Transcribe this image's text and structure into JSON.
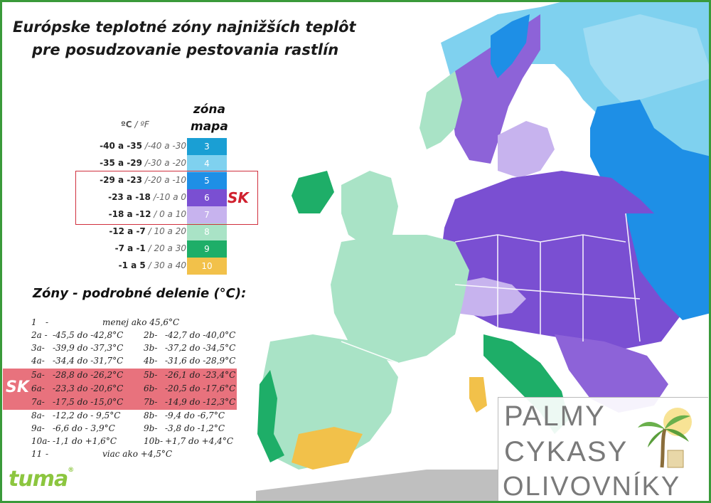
{
  "title": {
    "line1": "Európske teplotné zóny najnižších teplôt",
    "line2": "pre posudzovanie  pestovania rastlín"
  },
  "legend": {
    "units_c": "ºC",
    "units_f": " / ºF",
    "zone_header_1": "zóna",
    "zone_header_2": "mapa",
    "rows": [
      {
        "c": "-40 a -35",
        "f": "/-40 a -30",
        "zone": "3",
        "color": "#1a9fd4"
      },
      {
        "c": "-35 a -29",
        "f": "/-30 a -20",
        "zone": "4",
        "color": "#7fd1ef"
      },
      {
        "c": "-29 a -23",
        "f": "/-20 a -10",
        "zone": "5",
        "color": "#1e8fe6"
      },
      {
        "c": "-23 a -18",
        "f": "/-10 a 0",
        "zone": "6",
        "color": "#7a4fd2"
      },
      {
        "c": "-18 a -12",
        "f": "/ 0 a 10",
        "zone": "7",
        "color": "#c7b3ee"
      },
      {
        "c": "-12 a -7",
        "f": "/ 10 a 20",
        "zone": "8",
        "color": "#a9e3c6"
      },
      {
        "c": "-7 a -1",
        "f": "/ 20 a 30",
        "zone": "9",
        "color": "#1eae68"
      },
      {
        "c": "-1 a 5",
        "f": "/ 30 a 40",
        "zone": "10",
        "color": "#f2c14a"
      }
    ],
    "sk_label": "SK"
  },
  "details": {
    "title": "Zóny - podrobné delenie (°C):",
    "rows": [
      {
        "a_zone": "1",
        "a_sep": "-",
        "a_range": "menej ako 45,6°C",
        "b_zone": "",
        "b_range": ""
      },
      {
        "a_zone": "2a -",
        "a_sep": "",
        "a_range": "-45,5 do -42,8°C",
        "b_zone": "2b-",
        "b_range": "-42,7 do -40,0°C"
      },
      {
        "a_zone": "3a-",
        "a_sep": "",
        "a_range": "-39,9 do -37,3°C",
        "b_zone": "3b-",
        "b_range": "-37,2 do -34,5°C"
      },
      {
        "a_zone": "4a-",
        "a_sep": "",
        "a_range": "-34,4 do -31,7°C",
        "b_zone": "4b-",
        "b_range": "-31,6 do -28,9°C"
      },
      {
        "a_zone": "5a-",
        "a_sep": "",
        "a_range": "-28,8 do -26,2°C",
        "b_zone": "5b-",
        "b_range": "-26,1 do -23,4°C"
      },
      {
        "a_zone": "6a-",
        "a_sep": "",
        "a_range": "-23,3 do -20,6°C",
        "b_zone": "6b-",
        "b_range": "-20,5 do -17,6°C"
      },
      {
        "a_zone": "7a-",
        "a_sep": "",
        "a_range": "-17,5 do -15,0°C",
        "b_zone": "7b-",
        "b_range": "-14,9 do -12,3°C"
      },
      {
        "a_zone": "8a-",
        "a_sep": "",
        "a_range": "-12,2 do - 9,5°C",
        "b_zone": "8b-",
        "b_range": "-9,4 do  -6,7°C"
      },
      {
        "a_zone": "9a-",
        "a_sep": "",
        "a_range": "-6,6 do  - 3,9°C",
        "b_zone": "9b-",
        "b_range": "-3,8 do  -1,2°C"
      },
      {
        "a_zone": "10a-",
        "a_sep": "",
        "a_range": "-1,1 do +1,6°C",
        "b_zone": "10b-",
        "b_range": "+1,7 do +4,4°C"
      },
      {
        "a_zone": "11",
        "a_sep": "-",
        "a_range": "viac ako +4,5°C",
        "b_zone": "",
        "b_range": ""
      }
    ],
    "sk_label": "SK"
  },
  "logo": {
    "text": "tuma",
    "mark": "®"
  },
  "brand": {
    "line1": "PALMY",
    "line2": "CYKASY",
    "line3": "OLIVOVNÍKY"
  }
}
